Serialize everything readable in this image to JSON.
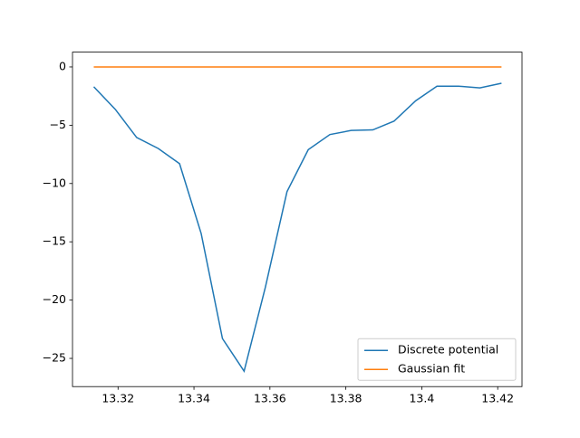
{
  "chart_data": {
    "type": "line",
    "x": [
      13.3136,
      13.3193,
      13.3249,
      13.3306,
      13.3362,
      13.3419,
      13.3475,
      13.3532,
      13.3588,
      13.3645,
      13.3701,
      13.3758,
      13.3814,
      13.3871,
      13.3927,
      13.3984,
      13.404,
      13.4097,
      13.4153,
      13.421
    ],
    "series": [
      {
        "name": "Discrete potential",
        "color": "#1f77b4",
        "values": [
          -1.7,
          -3.65,
          -6.05,
          -7.0,
          -8.3,
          -14.3,
          -23.3,
          -26.1,
          -18.9,
          -10.7,
          -7.1,
          -5.8,
          -5.45,
          -5.4,
          -4.65,
          -2.9,
          -1.65,
          -1.65,
          -1.8,
          -1.4
        ]
      },
      {
        "name": "Gaussian fit",
        "color": "#ff7f0e",
        "values": [
          0,
          0,
          0,
          0,
          0,
          0,
          0,
          0,
          0,
          0,
          0,
          0,
          0,
          0,
          0,
          0,
          0,
          0,
          0,
          0
        ]
      }
    ],
    "xlim": [
      13.308,
      13.4264
    ],
    "xticks": [
      13.32,
      13.34,
      13.36,
      13.38,
      13.4,
      13.42
    ],
    "ylim": [
      -27.42,
      1.27
    ],
    "yticks": [
      {
        "value": -25,
        "label": "−25"
      },
      {
        "value": -20,
        "label": "−20"
      },
      {
        "value": -15,
        "label": "−15"
      },
      {
        "value": -10,
        "label": "−10"
      },
      {
        "value": -5,
        "label": "−5"
      },
      0
    ],
    "legend": "lower right"
  }
}
